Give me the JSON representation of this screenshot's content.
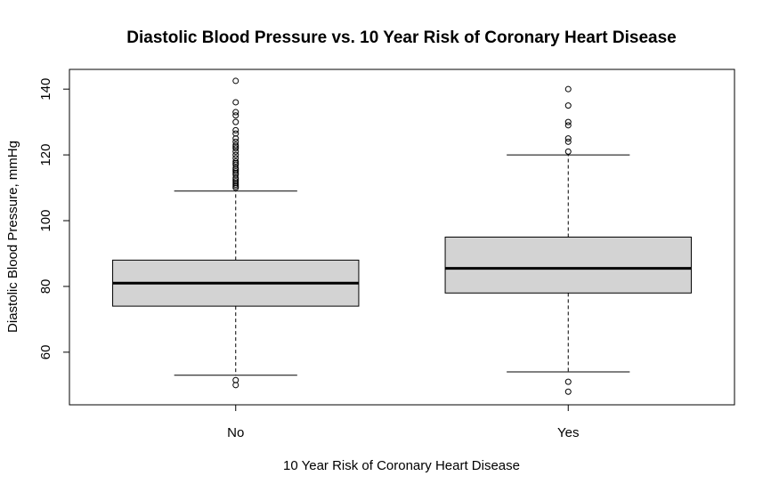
{
  "chart_data": {
    "type": "boxplot",
    "title": "Diastolic Blood Pressure vs. 10 Year Risk of Coronary Heart Disease",
    "xlabel": "10 Year Risk of Coronary Heart Disease",
    "ylabel": "Diastolic Blood Pressure, mmHg",
    "categories": [
      "No",
      "Yes"
    ],
    "y_ticks": [
      60,
      80,
      100,
      120,
      140
    ],
    "ylim": [
      44,
      146
    ],
    "grid": false,
    "legend": "none",
    "colors": {
      "box_fill": "#d3d3d3",
      "stroke": "#000000"
    },
    "boxes": [
      {
        "category": "No",
        "whisker_low": 53,
        "q1": 74,
        "median": 81,
        "q3": 88,
        "whisker_high": 109,
        "outliers": [
          50,
          51.5,
          110,
          110.5,
          111,
          111.5,
          112,
          112.5,
          113,
          114,
          114.5,
          115,
          115.5,
          116,
          117,
          117.5,
          118,
          119,
          120,
          121,
          122,
          122.5,
          123,
          124,
          125,
          126.5,
          127.5,
          130,
          132,
          133,
          136,
          142.5
        ]
      },
      {
        "category": "Yes",
        "whisker_low": 54,
        "q1": 78,
        "median": 85.5,
        "q3": 95,
        "whisker_high": 120,
        "outliers": [
          48,
          51,
          121,
          124,
          125,
          129,
          130,
          135,
          140
        ]
      }
    ]
  }
}
